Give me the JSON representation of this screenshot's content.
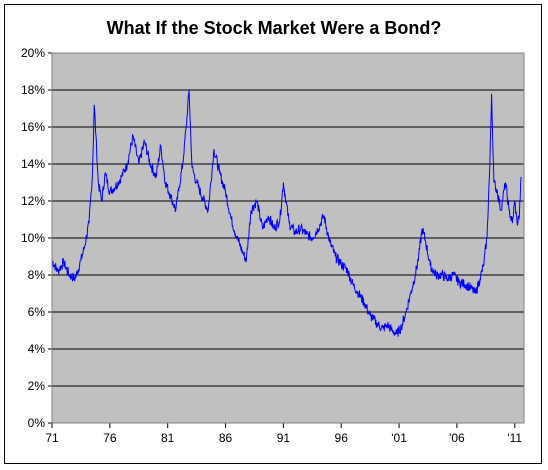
{
  "chart_data": {
    "type": "line",
    "title": "What If the Stock Market Were a Bond?",
    "xlabel": "",
    "ylabel": "",
    "x_tick_labels": [
      "71",
      "76",
      "81",
      "86",
      "91",
      "96",
      "'01",
      "'06",
      "'11"
    ],
    "x_tick_years": [
      1971,
      1976,
      1981,
      1986,
      1991,
      1996,
      2001,
      2006,
      2011
    ],
    "y_tick_labels": [
      "0%",
      "2%",
      "4%",
      "6%",
      "8%",
      "10%",
      "12%",
      "14%",
      "16%",
      "18%",
      "20%"
    ],
    "xlim": [
      1971,
      2011.8
    ],
    "ylim": [
      0,
      20
    ],
    "grid": "horizontal",
    "legend": "none",
    "colors": {
      "plot_background": "#C0C0C0",
      "line": "#0000FF",
      "grid": "#000000"
    },
    "series": [
      {
        "x": [
          1971.0,
          1971.5,
          1972.0,
          1972.5,
          1973.0,
          1973.5,
          1973.8,
          1974.2,
          1974.5,
          1974.65,
          1974.8,
          1975.0,
          1975.3,
          1975.6,
          1976.0,
          1976.5,
          1977.0,
          1977.5,
          1978.0,
          1978.5,
          1979.0,
          1979.5,
          1980.0,
          1980.4,
          1980.8,
          1981.3,
          1981.7,
          1982.0,
          1982.3,
          1982.6,
          1982.85,
          1983.1,
          1983.5,
          1984.0,
          1984.5,
          1985.0,
          1985.5,
          1986.0,
          1986.5,
          1987.0,
          1987.5,
          1987.8,
          1988.2,
          1988.7,
          1989.2,
          1989.7,
          1990.2,
          1990.7,
          1991.0,
          1991.5,
          1992.0,
          1992.5,
          1993.0,
          1993.5,
          1994.0,
          1994.5,
          1995.0,
          1995.5,
          1996.0,
          1996.5,
          1997.0,
          1997.5,
          1998.0,
          1998.5,
          1998.8,
          1999.2,
          1999.6,
          2000.0,
          2000.4,
          2000.8,
          2001.2,
          2001.6,
          2002.0,
          2002.4,
          2002.7,
          2003.0,
          2003.3,
          2003.7,
          2004.2,
          2004.7,
          2005.2,
          2005.7,
          2006.2,
          2006.7,
          2007.2,
          2007.6,
          2008.0,
          2008.3,
          2008.6,
          2008.85,
          2009.0,
          2009.2,
          2009.5,
          2009.8,
          2010.2,
          2010.5,
          2010.8,
          2011.0,
          2011.2,
          2011.4,
          2011.55
        ],
        "y": [
          8.8,
          8.2,
          8.7,
          8.0,
          7.8,
          8.8,
          9.5,
          10.8,
          13.5,
          17.2,
          15.5,
          13.0,
          12.0,
          13.5,
          12.5,
          12.8,
          13.3,
          14.0,
          15.5,
          14.0,
          15.2,
          14.0,
          13.3,
          15.0,
          13.0,
          12.2,
          11.5,
          12.8,
          14.0,
          16.0,
          18.0,
          13.8,
          13.0,
          12.2,
          11.5,
          14.8,
          13.5,
          12.5,
          11.0,
          10.0,
          9.2,
          8.8,
          11.5,
          12.0,
          10.5,
          11.2,
          10.5,
          11.0,
          13.0,
          10.8,
          10.3,
          10.5,
          10.2,
          10.0,
          10.5,
          11.2,
          9.8,
          9.0,
          8.6,
          8.3,
          7.5,
          7.0,
          6.5,
          5.8,
          5.6,
          5.3,
          5.1,
          5.3,
          5.0,
          4.8,
          5.2,
          6.0,
          7.0,
          8.0,
          9.0,
          10.5,
          9.8,
          8.5,
          8.0,
          8.0,
          7.8,
          8.0,
          7.6,
          7.5,
          7.3,
          7.0,
          7.8,
          8.5,
          10.0,
          14.0,
          17.8,
          13.0,
          12.5,
          11.5,
          13.0,
          11.5,
          10.8,
          12.0,
          10.8,
          11.2,
          13.3
        ]
      }
    ]
  }
}
